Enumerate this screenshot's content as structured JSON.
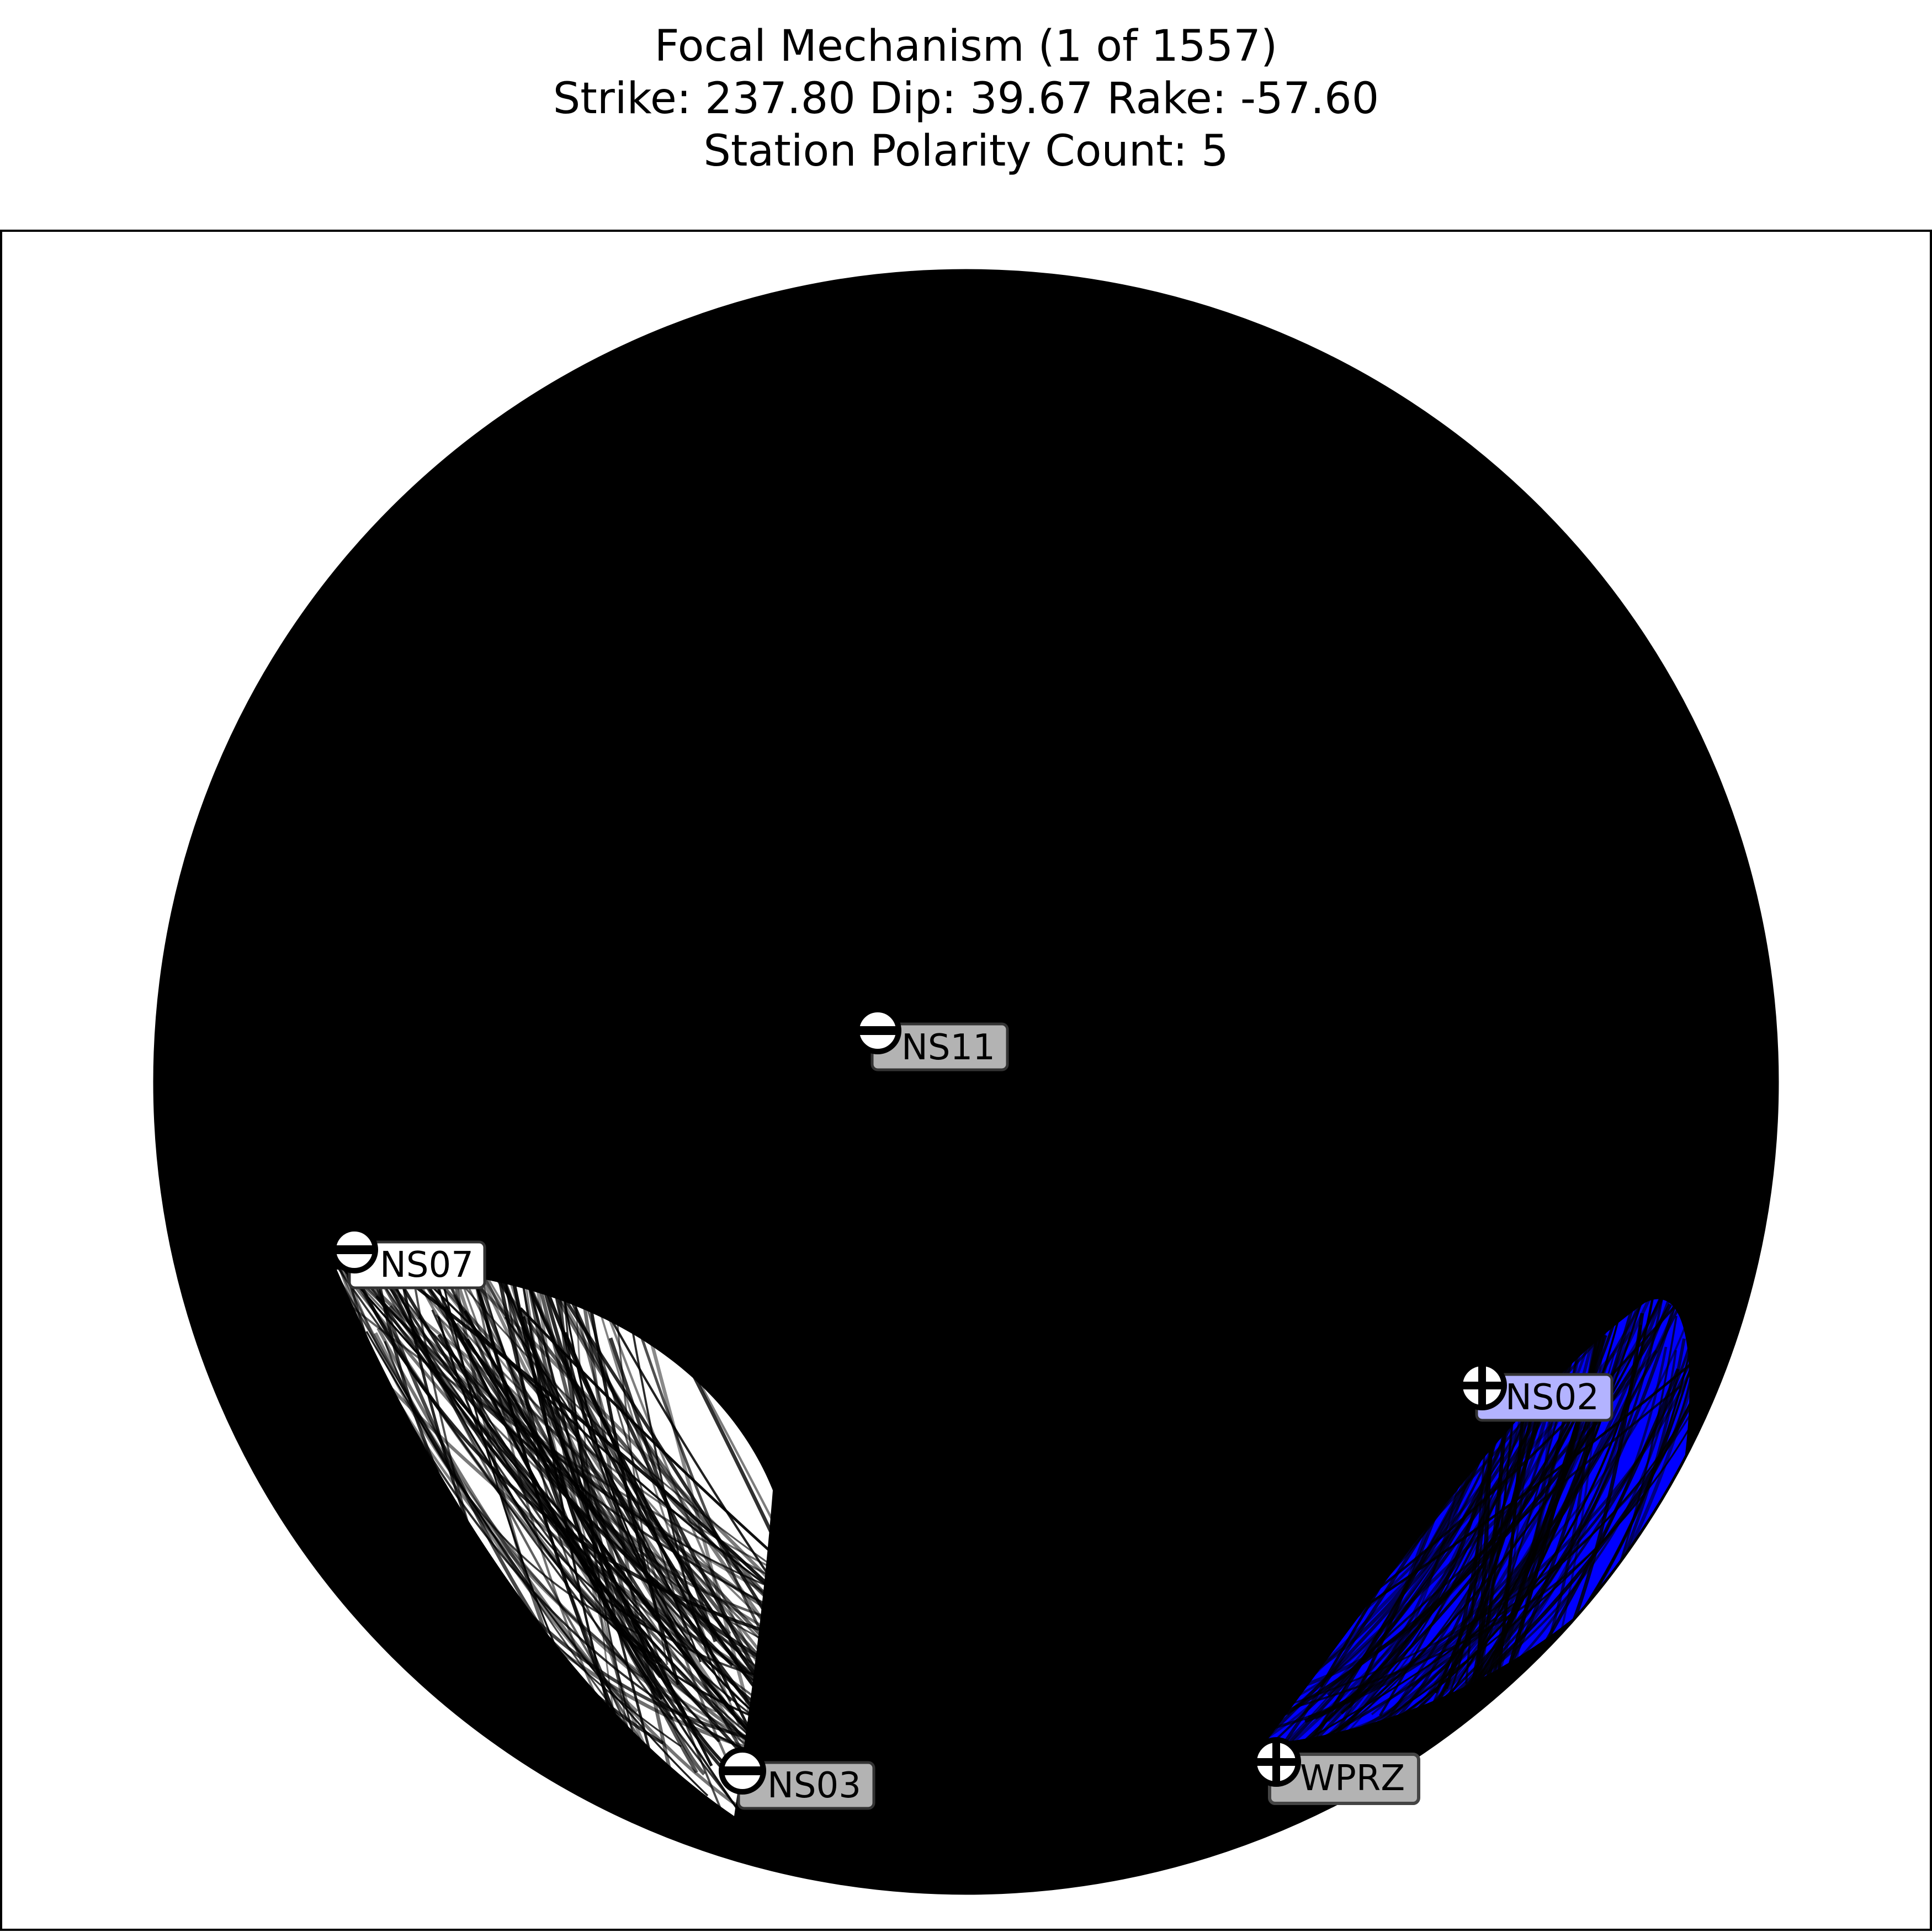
{
  "chart_data": {
    "type": "scatter",
    "title_lines": [
      "Focal Mechanism (1 of 1557)",
      "Strike: 237.80  Dip:  39.67  Rake: -57.60",
      "Station Polarity Count: 5"
    ],
    "mechanism": {
      "index": 1,
      "total": 1557,
      "strike": 237.8,
      "dip": 39.67,
      "rake": -57.6,
      "station_polarity_count": 5
    },
    "stations": [
      {
        "name": "NS11",
        "polarity": "negative",
        "azimuth_deg": 351,
        "takeoff_fraction": 0.07
      },
      {
        "name": "NS07",
        "polarity": "negative",
        "azimuth_deg": 257,
        "takeoff_fraction": 0.77
      },
      {
        "name": "NS03",
        "polarity": "negative",
        "azimuth_deg": 198,
        "takeoff_fraction": 0.85
      },
      {
        "name": "NS02",
        "polarity": "positive",
        "azimuth_deg": 118,
        "takeoff_fraction": 0.77
      },
      {
        "name": "WPRZ",
        "polarity": "positive",
        "azimuth_deg": 152,
        "takeoff_fraction": 0.94
      }
    ],
    "regions": {
      "compressional_color": "#0000ff",
      "dilatational_color": "#ffffff",
      "nodal_line_color": "#000000",
      "beachball_background": "#000000"
    },
    "label_box_colors": {
      "NS11": "#b3b3b3",
      "NS07": "#ffffff",
      "NS03": "#b3b3b3",
      "NS02": "#b3b3ff",
      "WPRZ": "#b3b3b3"
    },
    "grid": false,
    "legend": "none"
  }
}
